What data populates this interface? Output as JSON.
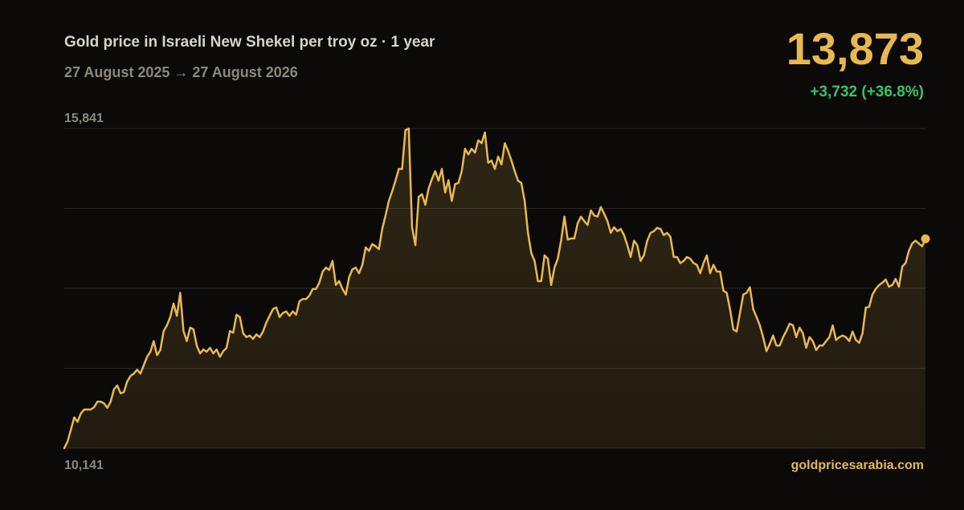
{
  "chart_data": {
    "type": "line",
    "title": "Gold price in Israeli New Shekel per troy oz · 1 year",
    "subtitle": "27 August 2025 → 27 August 2026",
    "headline": {
      "price": "13,873",
      "change": "+3,732 (+36.8%)"
    },
    "source": "goldpricesarabia.com",
    "color": "#e8b84f",
    "grid": true,
    "ylim": [
      10141,
      15841
    ],
    "yticks": [
      {
        "value": 10141,
        "label": "10,141"
      },
      11566,
      12991,
      14416,
      {
        "value": 15841,
        "label": "15,841"
      }
    ],
    "values": [
      10141,
      10260,
      10470,
      10690,
      10610,
      10760,
      10830,
      10830,
      10830,
      10870,
      10970,
      10970,
      10940,
      10860,
      10970,
      11190,
      11260,
      11120,
      11140,
      11330,
      11430,
      11470,
      11540,
      11470,
      11620,
      11770,
      11860,
      12050,
      11800,
      11890,
      12230,
      12330,
      12480,
      12720,
      12500,
      12910,
      12230,
      12050,
      12290,
      12260,
      11970,
      11830,
      11900,
      11860,
      11930,
      11830,
      11900,
      11770,
      11870,
      11930,
      12230,
      12200,
      12520,
      12480,
      12190,
      12120,
      12150,
      12090,
      12170,
      12120,
      12220,
      12380,
      12500,
      12620,
      12650,
      12480,
      12550,
      12580,
      12500,
      12580,
      12520,
      12760,
      12800,
      12800,
      12860,
      12980,
      12980,
      13090,
      13290,
      13360,
      13320,
      13480,
      13050,
      13120,
      12980,
      12880,
      13190,
      13330,
      13360,
      13260,
      13410,
      13720,
      13660,
      13780,
      13740,
      13690,
      14050,
      14290,
      14550,
      14720,
      14910,
      15120,
      15120,
      15810,
      15841,
      14080,
      13760,
      14620,
      14670,
      14480,
      14770,
      14940,
      15080,
      14910,
      15120,
      14700,
      14920,
      14550,
      14850,
      14870,
      15080,
      15480,
      15380,
      15480,
      15410,
      15630,
      15580,
      15770,
      15230,
      15270,
      15120,
      15340,
      15200,
      15580,
      15440,
      15270,
      15080,
      14910,
      14870,
      14550,
      13980,
      13620,
      13480,
      13120,
      13120,
      13580,
      13520,
      13050,
      13360,
      13520,
      13840,
      14270,
      13860,
      13880,
      13880,
      14150,
      14270,
      14190,
      14120,
      14380,
      14290,
      14270,
      14440,
      14320,
      14190,
      13980,
      14080,
      14010,
      14050,
      13940,
      13760,
      13550,
      13840,
      13760,
      13480,
      13580,
      13840,
      13980,
      14010,
      14070,
      14050,
      13940,
      13980,
      13910,
      13550,
      13550,
      13440,
      13480,
      13550,
      13520,
      13440,
      13410,
      13260,
      13440,
      13580,
      13260,
      13410,
      13290,
      13290,
      12950,
      12910,
      12620,
      12260,
      12220,
      12550,
      12880,
      12910,
      13010,
      12620,
      12480,
      12330,
      12120,
      11870,
      12000,
      12150,
      11970,
      11970,
      12120,
      12230,
      12360,
      12330,
      12120,
      12290,
      12190,
      11930,
      12120,
      12050,
      11890,
      11970,
      11970,
      12050,
      12120,
      12330,
      12070,
      12120,
      12150,
      12120,
      12050,
      12220,
      12070,
      12020,
      12190,
      12650,
      12660,
      12880,
      12980,
      13050,
      13090,
      13150,
      13020,
      13050,
      13160,
      13020,
      13380,
      13440,
      13660,
      13790,
      13840,
      13790,
      13740,
      13873
    ]
  }
}
